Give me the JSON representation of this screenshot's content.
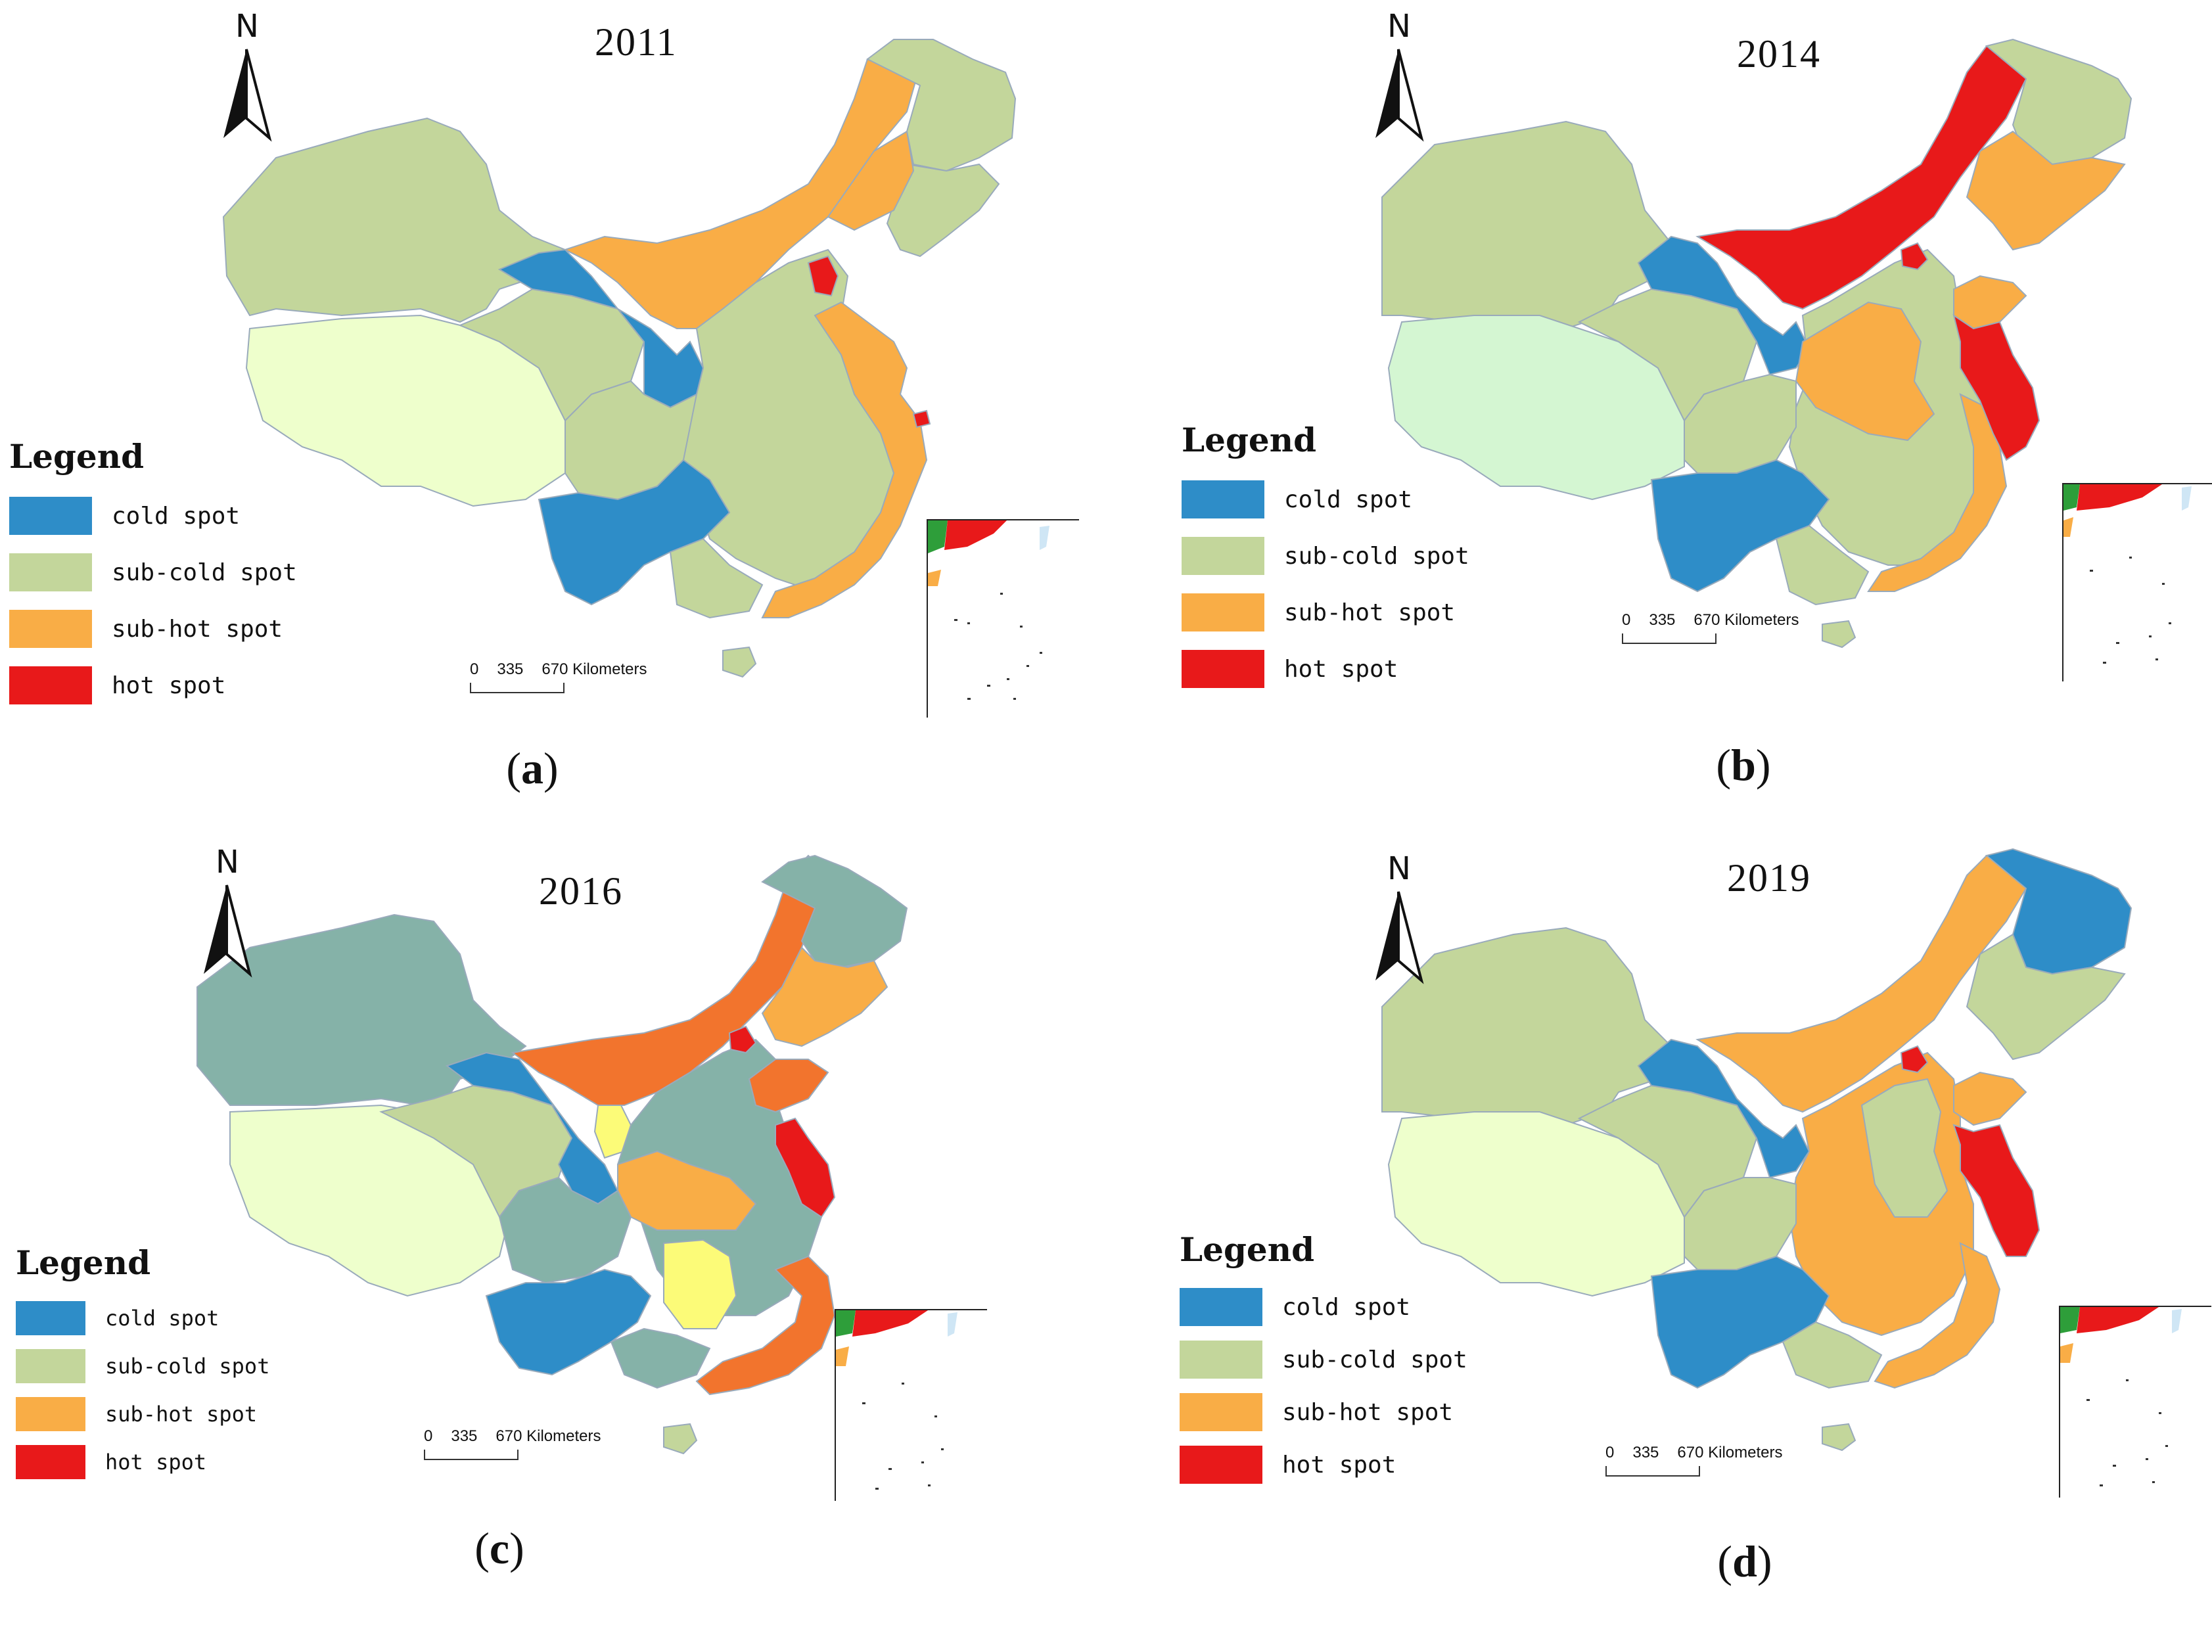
{
  "colors": {
    "cold": "#2e8dc8",
    "sub_cold": "#c3d69b",
    "sub_hot": "#f9ad46",
    "hot": "#e8191a",
    "tibet_a": "#eeffcc",
    "tibet_b": "#d4f6d2",
    "teal_gray": "#85b2a8",
    "dark_orange": "#f2742d",
    "yellow": "#fcfb78"
  },
  "panels": [
    {
      "year": "2011",
      "caption_letter": "a",
      "legend": {
        "title": "Legend",
        "items": [
          {
            "label": "cold spot",
            "color": "#2e8dc8"
          },
          {
            "label": "sub-cold spot",
            "color": "#c3d69b"
          },
          {
            "label": "sub-hot spot",
            "color": "#f9ad46"
          },
          {
            "label": "hot spot",
            "color": "#e8191a"
          }
        ]
      },
      "scale": {
        "ticks": [
          "0",
          "335",
          "670 Kilometers"
        ]
      },
      "north": "N"
    },
    {
      "year": "2014",
      "caption_letter": "b",
      "legend": {
        "title": "Legend",
        "items": [
          {
            "label": "cold spot",
            "color": "#2e8dc8"
          },
          {
            "label": "sub-cold spot",
            "color": "#c3d69b"
          },
          {
            "label": "sub-hot spot",
            "color": "#f9ad46"
          },
          {
            "label": "hot spot",
            "color": "#e8191a"
          }
        ]
      },
      "scale": {
        "ticks": [
          "0",
          "335",
          "670 Kilometers"
        ]
      },
      "north": "N"
    },
    {
      "year": "2016",
      "caption_letter": "c",
      "legend": {
        "title": "Legend",
        "items": [
          {
            "label": "cold spot",
            "color": "#2e8dc8"
          },
          {
            "label": "sub-cold spot",
            "color": "#c3d69b"
          },
          {
            "label": "sub-hot spot",
            "color": "#f9ad46"
          },
          {
            "label": "hot spot",
            "color": "#e8191a"
          }
        ]
      },
      "scale": {
        "ticks": [
          "0",
          "335",
          "670 Kilometers"
        ]
      },
      "north": "N"
    },
    {
      "year": "2019",
      "caption_letter": "d",
      "legend": {
        "title": "Legend",
        "items": [
          {
            "label": "cold spot",
            "color": "#2e8dc8"
          },
          {
            "label": "sub-cold spot",
            "color": "#c3d69b"
          },
          {
            "label": "sub-hot spot",
            "color": "#f9ad46"
          },
          {
            "label": "hot spot",
            "color": "#e8191a"
          }
        ]
      },
      "scale": {
        "ticks": [
          "0",
          "335",
          "670 Kilometers"
        ]
      },
      "north": "N"
    }
  ]
}
